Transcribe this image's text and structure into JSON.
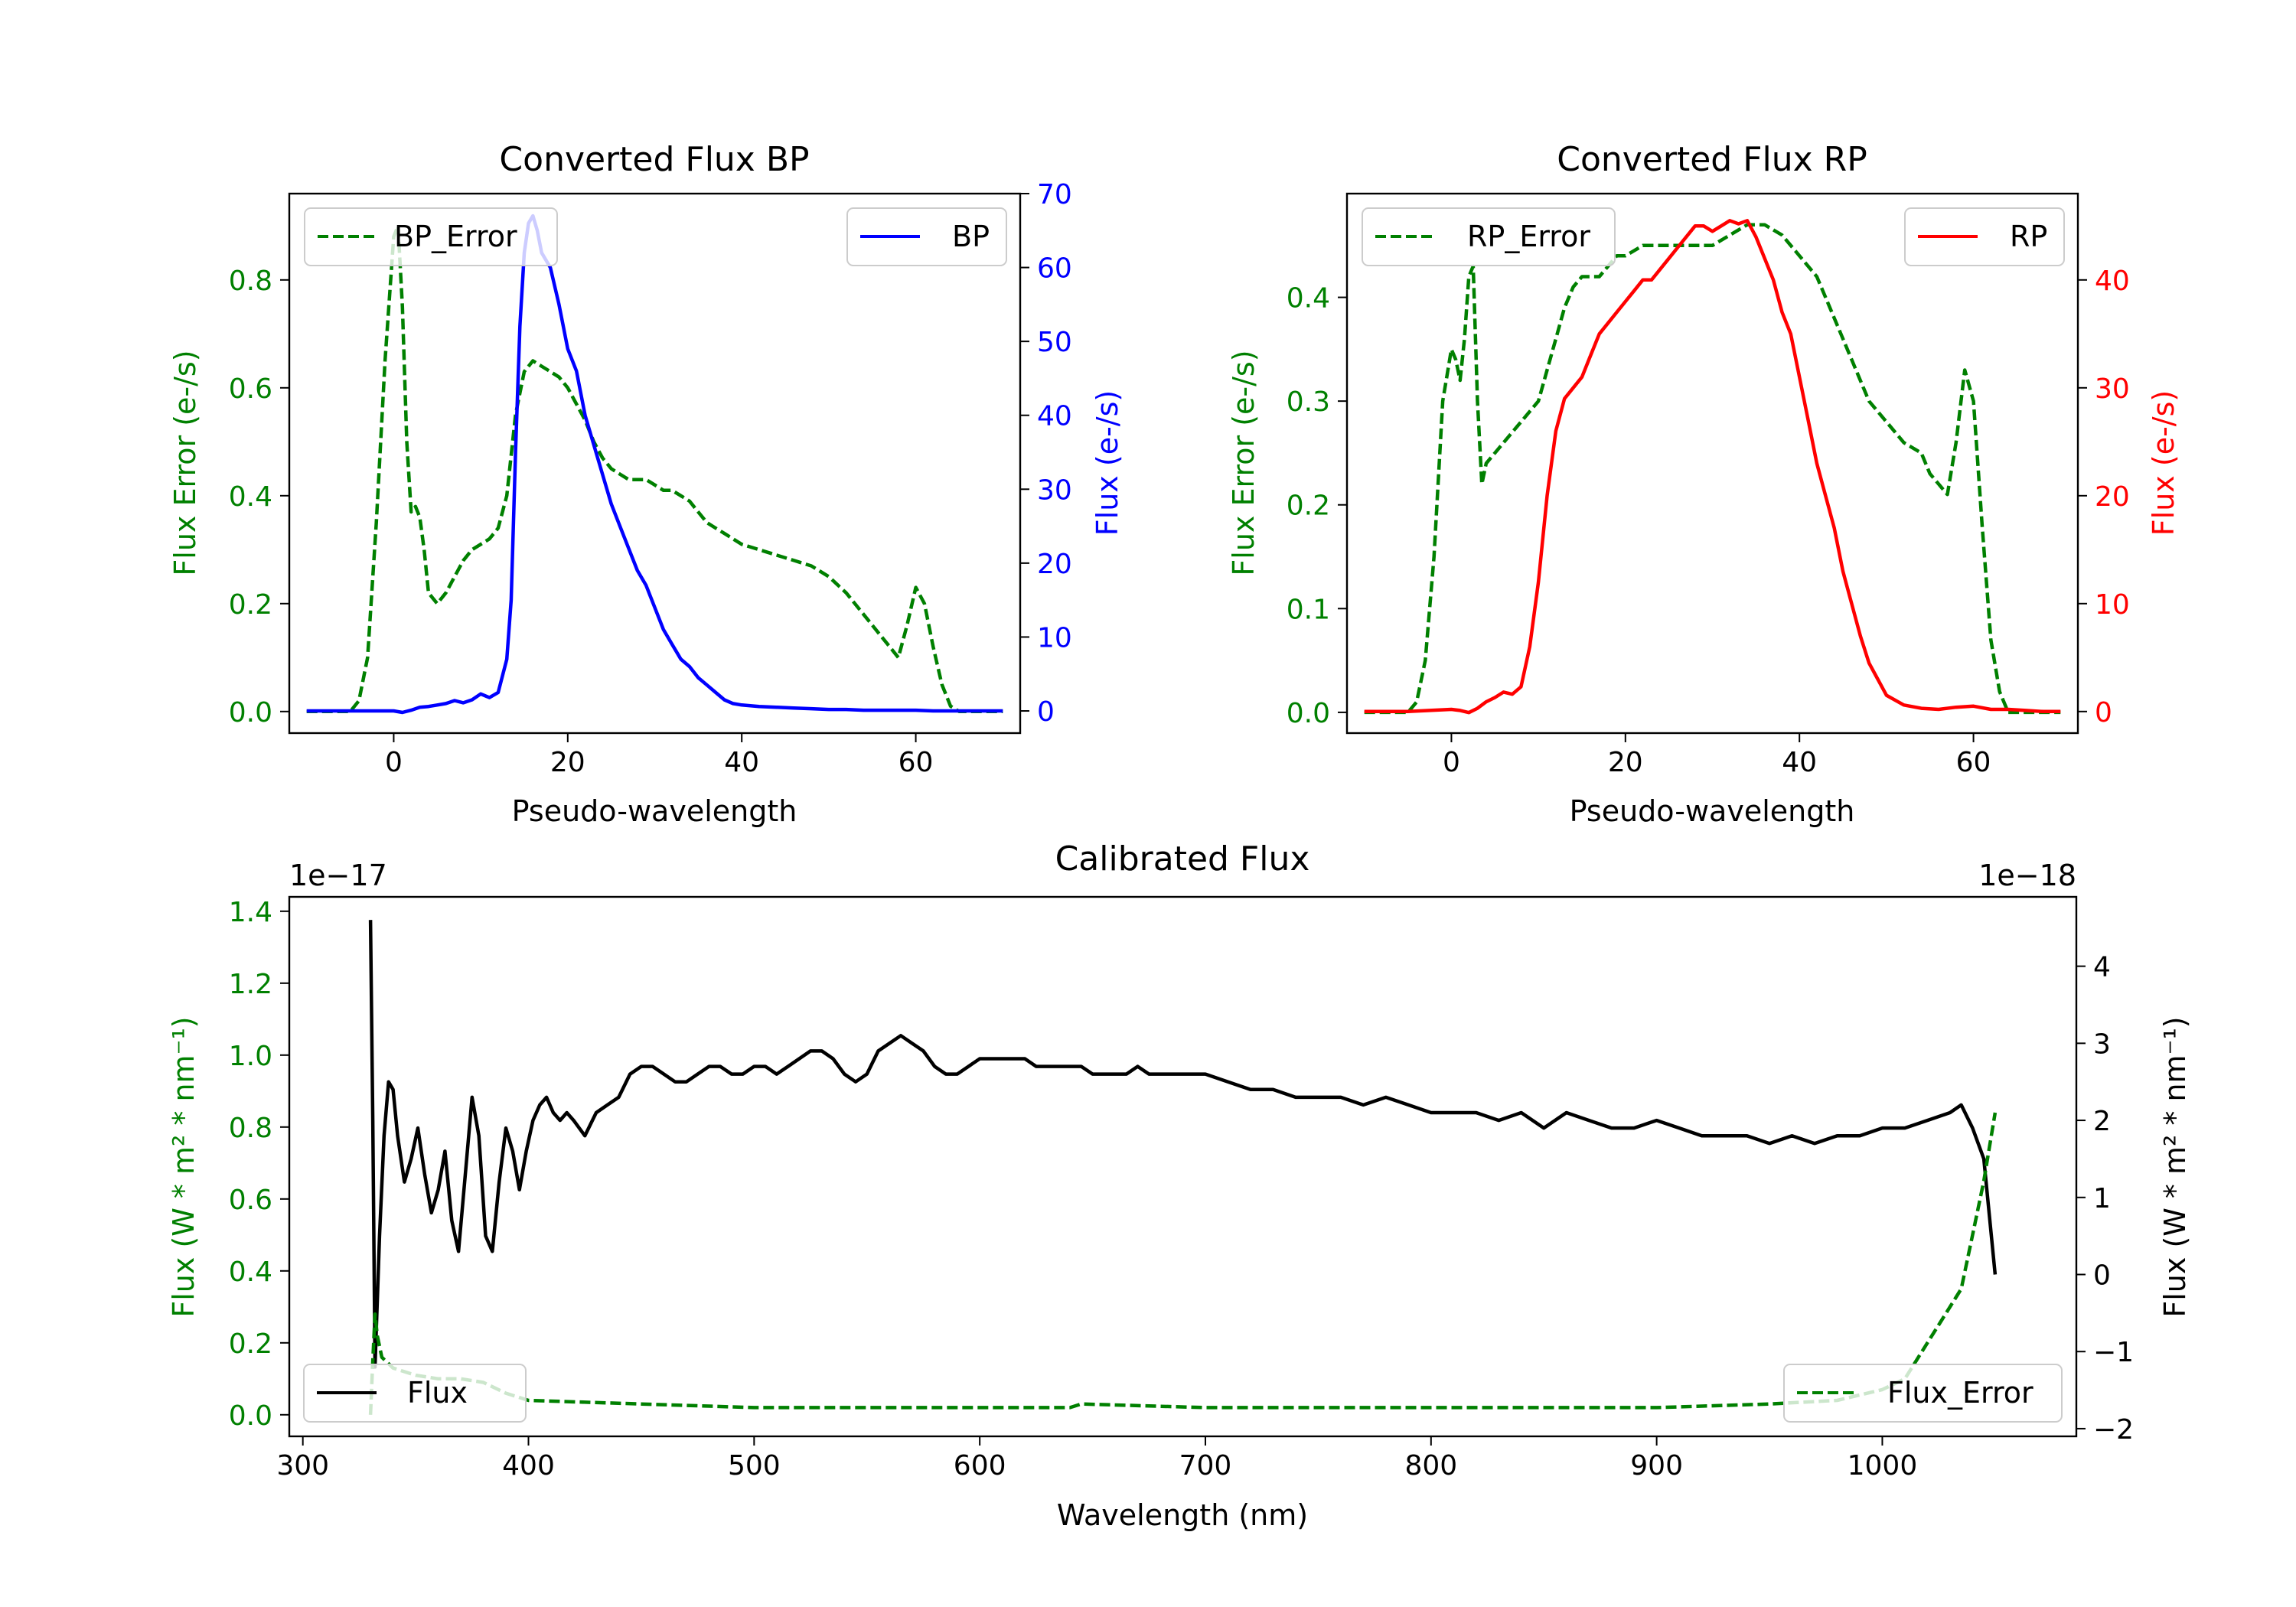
{
  "colors": {
    "green": "#008000",
    "blue": "#0000ff",
    "red": "#ff0000",
    "black": "#000000"
  },
  "chart_data": [
    {
      "id": "bp",
      "type": "line",
      "title": "Converted Flux BP",
      "xlabel": "Pseudo-wavelength",
      "ylabel_left": "Flux Error (e-/s)",
      "ylabel_right": "Flux (e-/s)",
      "xlim": [
        -12,
        72
      ],
      "ylim_left": [
        -0.04,
        0.96
      ],
      "ylim_right": [
        -3,
        70
      ],
      "xticks": [
        0,
        20,
        40,
        60
      ],
      "yticks_left": [
        0.0,
        0.2,
        0.4,
        0.6,
        0.8
      ],
      "ytick_labels_left": [
        "0.0",
        "0.2",
        "0.4",
        "0.6",
        "0.8"
      ],
      "yticks_right": [
        0,
        10,
        20,
        30,
        40,
        50,
        60,
        70
      ],
      "series": [
        {
          "name": "BP_Error",
          "axis": "left",
          "style": "dashed",
          "color": "green",
          "legend": "top-left",
          "x": [
            -10,
            -5,
            -4,
            -3,
            -2,
            -1,
            0,
            0.5,
            1,
            1.5,
            2,
            2.5,
            3,
            3.5,
            4,
            4.5,
            5,
            6,
            7,
            8,
            9,
            10,
            11,
            12,
            13,
            14,
            15,
            16,
            17,
            18,
            19,
            20,
            21,
            22,
            23,
            24,
            25,
            26,
            27,
            28,
            29,
            30,
            31,
            32,
            33,
            34,
            35,
            36,
            37,
            38,
            39,
            40,
            42,
            44,
            46,
            48,
            50,
            52,
            54,
            56,
            57,
            58,
            59,
            60,
            61,
            62,
            63,
            64,
            65,
            70
          ],
          "values": [
            0.0,
            0.0,
            0.02,
            0.1,
            0.35,
            0.65,
            0.88,
            0.9,
            0.75,
            0.5,
            0.37,
            0.38,
            0.36,
            0.3,
            0.22,
            0.21,
            0.2,
            0.22,
            0.25,
            0.28,
            0.3,
            0.31,
            0.32,
            0.34,
            0.4,
            0.55,
            0.63,
            0.65,
            0.64,
            0.63,
            0.62,
            0.6,
            0.57,
            0.54,
            0.5,
            0.47,
            0.45,
            0.44,
            0.43,
            0.43,
            0.43,
            0.42,
            0.41,
            0.41,
            0.4,
            0.39,
            0.37,
            0.35,
            0.34,
            0.33,
            0.32,
            0.31,
            0.3,
            0.29,
            0.28,
            0.27,
            0.25,
            0.22,
            0.18,
            0.14,
            0.12,
            0.1,
            0.16,
            0.23,
            0.2,
            0.12,
            0.05,
            0.01,
            0.0,
            0.0
          ]
        },
        {
          "name": "BP",
          "axis": "right",
          "style": "solid",
          "color": "blue",
          "legend": "top-right",
          "x": [
            -10,
            -5,
            0,
            1,
            2,
            3,
            4,
            5,
            6,
            7,
            8,
            9,
            10,
            11,
            12,
            13,
            13.5,
            14,
            14.5,
            15,
            15.5,
            16,
            16.5,
            17,
            18,
            19,
            20,
            21,
            22,
            23,
            24,
            25,
            26,
            27,
            28,
            29,
            30,
            31,
            32,
            33,
            34,
            35,
            36,
            37,
            38,
            39,
            40,
            42,
            44,
            46,
            48,
            50,
            52,
            54,
            56,
            58,
            60,
            62,
            64,
            66,
            68,
            70
          ],
          "values": [
            0,
            0,
            0,
            -0.2,
            0.1,
            0.5,
            0.6,
            0.8,
            1.0,
            1.4,
            1.1,
            1.5,
            2.3,
            1.8,
            2.5,
            7,
            15,
            35,
            52,
            62,
            66,
            67,
            65,
            62,
            60,
            55,
            49,
            46,
            40,
            36,
            32,
            28,
            25,
            22,
            19,
            17,
            14,
            11,
            9,
            7,
            6,
            4.5,
            3.5,
            2.5,
            1.5,
            1.0,
            0.8,
            0.6,
            0.5,
            0.4,
            0.3,
            0.2,
            0.2,
            0.1,
            0.1,
            0.1,
            0.1,
            0,
            0,
            0,
            0,
            0
          ]
        }
      ]
    },
    {
      "id": "rp",
      "type": "line",
      "title": "Converted Flux RP",
      "xlabel": "Pseudo-wavelength",
      "ylabel_left": "Flux Error (e-/s)",
      "ylabel_right": "Flux (e-/s)",
      "xlim": [
        -12,
        72
      ],
      "ylim_left": [
        -0.02,
        0.5
      ],
      "ylim_right": [
        -2,
        48
      ],
      "xticks": [
        0,
        20,
        40,
        60
      ],
      "yticks_left": [
        0.0,
        0.1,
        0.2,
        0.3,
        0.4
      ],
      "ytick_labels_left": [
        "0.0",
        "0.1",
        "0.2",
        "0.3",
        "0.4"
      ],
      "yticks_right": [
        0,
        10,
        20,
        30,
        40
      ],
      "series": [
        {
          "name": "RP_Error",
          "axis": "left",
          "style": "dashed",
          "color": "green",
          "legend": "top-left",
          "x": [
            -10,
            -5,
            -4,
            -3,
            -2,
            -1,
            0,
            0.5,
            1,
            1.5,
            2,
            2.5,
            3,
            3.5,
            4,
            5,
            6,
            7,
            8,
            9,
            10,
            11,
            12,
            13,
            14,
            15,
            16,
            17,
            18,
            19,
            20,
            22,
            24,
            26,
            28,
            30,
            32,
            34,
            36,
            38,
            40,
            42,
            44,
            46,
            48,
            50,
            52,
            54,
            55,
            56,
            57,
            58,
            59,
            60,
            61,
            62,
            63,
            64,
            65,
            70
          ],
          "values": [
            0.0,
            0.0,
            0.01,
            0.05,
            0.15,
            0.3,
            0.35,
            0.34,
            0.32,
            0.36,
            0.42,
            0.43,
            0.3,
            0.22,
            0.24,
            0.25,
            0.26,
            0.27,
            0.28,
            0.29,
            0.3,
            0.33,
            0.36,
            0.39,
            0.41,
            0.42,
            0.42,
            0.42,
            0.43,
            0.44,
            0.44,
            0.45,
            0.45,
            0.45,
            0.45,
            0.45,
            0.46,
            0.47,
            0.47,
            0.46,
            0.44,
            0.42,
            0.38,
            0.34,
            0.3,
            0.28,
            0.26,
            0.25,
            0.23,
            0.22,
            0.21,
            0.26,
            0.33,
            0.3,
            0.18,
            0.07,
            0.02,
            0.0,
            0.0,
            0.0
          ]
        },
        {
          "name": "RP",
          "axis": "right",
          "style": "solid",
          "color": "red",
          "legend": "top-right",
          "x": [
            -10,
            -5,
            0,
            1,
            2,
            3,
            4,
            5,
            6,
            7,
            8,
            9,
            10,
            11,
            12,
            13,
            14,
            15,
            16,
            17,
            18,
            19,
            20,
            21,
            22,
            23,
            24,
            25,
            26,
            27,
            28,
            29,
            30,
            31,
            32,
            33,
            34,
            35,
            36,
            37,
            38,
            39,
            40,
            41,
            42,
            43,
            44,
            45,
            46,
            47,
            48,
            49,
            50,
            52,
            54,
            56,
            58,
            60,
            62,
            64,
            66,
            68,
            70
          ],
          "values": [
            0,
            0,
            0.2,
            0.1,
            -0.1,
            0.3,
            0.9,
            1.3,
            1.8,
            1.6,
            2.3,
            6,
            12,
            20,
            26,
            29,
            30,
            31,
            33,
            35,
            36,
            37,
            38,
            39,
            40,
            40,
            41,
            42,
            43,
            44,
            45,
            45,
            44.5,
            45,
            45.5,
            45.2,
            45.5,
            44,
            42,
            40,
            37,
            35,
            31,
            27,
            23,
            20,
            17,
            13,
            10,
            7,
            4.5,
            3,
            1.5,
            0.6,
            0.3,
            0.2,
            0.4,
            0.5,
            0.2,
            0.2,
            0.1,
            0,
            0
          ]
        }
      ]
    },
    {
      "id": "cal",
      "type": "line",
      "title": "Calibrated Flux",
      "xlabel": "Wavelength (nm)",
      "ylabel_left": "Flux (W * m² * nm⁻¹)",
      "ylabel_right": "Flux (W * m² * nm⁻¹)",
      "offset_left": "1e−17",
      "offset_right": "1e−18",
      "xlim": [
        294,
        1086
      ],
      "ylim_left": [
        -0.06,
        1.44
      ],
      "ylim_right": [
        -2.1,
        4.9
      ],
      "xticks": [
        300,
        400,
        500,
        600,
        700,
        800,
        900,
        1000
      ],
      "yticks_left": [
        0.0,
        0.2,
        0.4,
        0.6,
        0.8,
        1.0,
        1.2,
        1.4
      ],
      "ytick_labels_left": [
        "0.0",
        "0.2",
        "0.4",
        "0.6",
        "0.8",
        "1.0",
        "1.2",
        "1.4"
      ],
      "yticks_right": [
        -2,
        -1,
        0,
        1,
        2,
        3,
        4
      ],
      "ytick_labels_right": [
        "−2",
        "−1",
        "0",
        "1",
        "2",
        "3",
        "4"
      ],
      "series": [
        {
          "name": "Flux",
          "axis": "right",
          "style": "solid",
          "color": "black",
          "legend": "bottom-left",
          "x": [
            330,
            331,
            332,
            334,
            336,
            338,
            340,
            342,
            345,
            348,
            351,
            354,
            357,
            360,
            363,
            366,
            369,
            372,
            375,
            378,
            381,
            384,
            387,
            390,
            393,
            396,
            399,
            402,
            405,
            408,
            411,
            414,
            417,
            420,
            425,
            430,
            435,
            440,
            445,
            450,
            455,
            460,
            465,
            470,
            475,
            480,
            485,
            490,
            495,
            500,
            505,
            510,
            515,
            520,
            525,
            530,
            535,
            540,
            545,
            550,
            555,
            560,
            565,
            570,
            575,
            580,
            585,
            590,
            595,
            600,
            605,
            610,
            615,
            620,
            625,
            630,
            640,
            645,
            650,
            655,
            660,
            665,
            670,
            675,
            680,
            690,
            700,
            710,
            720,
            730,
            740,
            750,
            760,
            770,
            780,
            790,
            800,
            810,
            820,
            830,
            840,
            850,
            860,
            870,
            880,
            890,
            900,
            910,
            920,
            930,
            940,
            950,
            960,
            970,
            980,
            990,
            1000,
            1010,
            1020,
            1030,
            1035,
            1040,
            1045,
            1050
          ],
          "values": [
            4.6,
            2.0,
            -1.2,
            0.5,
            1.8,
            2.5,
            2.4,
            1.8,
            1.2,
            1.5,
            1.9,
            1.3,
            0.8,
            1.1,
            1.6,
            0.7,
            0.3,
            1.3,
            2.3,
            1.8,
            0.5,
            0.3,
            1.2,
            1.9,
            1.6,
            1.1,
            1.6,
            2.0,
            2.2,
            2.3,
            2.1,
            2.0,
            2.1,
            2.0,
            1.8,
            2.1,
            2.2,
            2.3,
            2.6,
            2.7,
            2.7,
            2.6,
            2.5,
            2.5,
            2.6,
            2.7,
            2.7,
            2.6,
            2.6,
            2.7,
            2.7,
            2.6,
            2.7,
            2.8,
            2.9,
            2.9,
            2.8,
            2.6,
            2.5,
            2.6,
            2.9,
            3.0,
            3.1,
            3.0,
            2.9,
            2.7,
            2.6,
            2.6,
            2.7,
            2.8,
            2.8,
            2.8,
            2.8,
            2.8,
            2.7,
            2.7,
            2.7,
            2.7,
            2.6,
            2.6,
            2.6,
            2.6,
            2.7,
            2.6,
            2.6,
            2.6,
            2.6,
            2.5,
            2.4,
            2.4,
            2.3,
            2.3,
            2.3,
            2.2,
            2.3,
            2.2,
            2.1,
            2.1,
            2.1,
            2.0,
            2.1,
            1.9,
            2.1,
            2.0,
            1.9,
            1.9,
            2.0,
            1.9,
            1.8,
            1.8,
            1.8,
            1.7,
            1.8,
            1.7,
            1.8,
            1.8,
            1.9,
            1.9,
            2.0,
            2.1,
            2.2,
            1.9,
            1.5,
            0.0
          ]
        },
        {
          "name": "Flux_Error",
          "axis": "left",
          "style": "dashed",
          "color": "green",
          "legend": "bottom-right",
          "x": [
            330,
            331,
            332,
            333,
            335,
            340,
            350,
            360,
            370,
            380,
            390,
            400,
            450,
            500,
            550,
            600,
            640,
            645,
            700,
            800,
            900,
            950,
            980,
            1000,
            1010,
            1015,
            1020,
            1025,
            1030,
            1035,
            1040,
            1045,
            1050
          ],
          "values": [
            0.0,
            0.15,
            0.28,
            0.22,
            0.16,
            0.13,
            0.11,
            0.1,
            0.1,
            0.09,
            0.06,
            0.04,
            0.03,
            0.02,
            0.02,
            0.02,
            0.02,
            0.03,
            0.02,
            0.02,
            0.02,
            0.03,
            0.04,
            0.07,
            0.1,
            0.15,
            0.2,
            0.25,
            0.3,
            0.35,
            0.5,
            0.65,
            0.84
          ]
        }
      ]
    }
  ]
}
